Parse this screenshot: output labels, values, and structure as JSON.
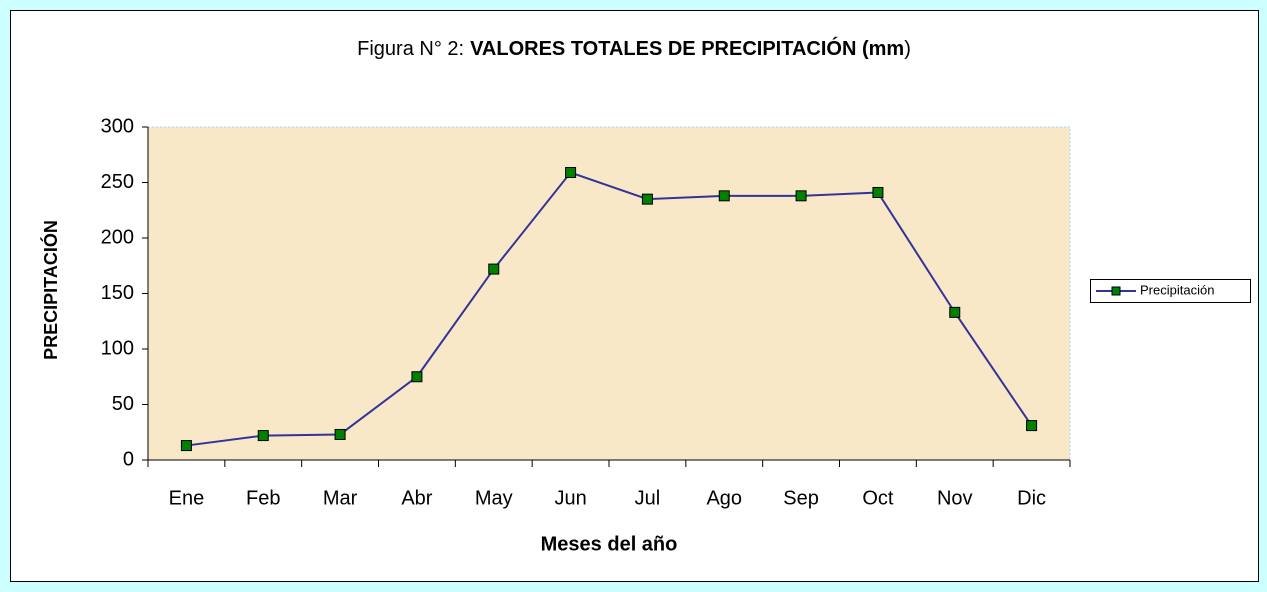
{
  "chart_data": {
    "type": "line",
    "title_parts": [
      "Figura N° 2:",
      "VALORES TOTALES DE PRECIPITACIÓN (mm",
      ")"
    ],
    "x_label": "Meses del año",
    "y_label": "PRECIPITACIÓN",
    "categories": [
      "Ene",
      "Feb",
      "Mar",
      "Abr",
      "May",
      "Jun",
      "Jul",
      "Ago",
      "Sep",
      "Oct",
      "Nov",
      "Dic"
    ],
    "series": [
      {
        "name": "Precipitación",
        "color": "#333399",
        "marker_color": "#008000",
        "values": [
          13,
          22,
          23,
          75,
          172,
          259,
          235,
          238,
          238,
          241,
          133,
          31
        ]
      }
    ],
    "ylim": [
      0,
      300
    ],
    "yticks": [
      0,
      50,
      100,
      150,
      200,
      250,
      300
    ],
    "grid": false,
    "legend": "right"
  }
}
